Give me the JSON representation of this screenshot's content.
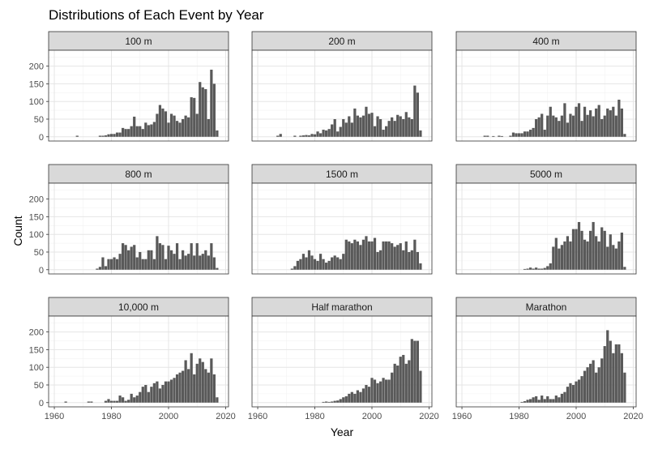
{
  "chart_data": {
    "type": "bar",
    "title": "Distributions of Each Event by Year",
    "xlabel": "Year",
    "ylabel": "Count",
    "xlim": [
      1958,
      2021
    ],
    "ylim": [
      -12,
      245
    ],
    "xticks": [
      1960,
      1980,
      2000,
      2020
    ],
    "yticks": [
      0,
      50,
      100,
      150,
      200
    ],
    "grid": true,
    "bar_color": "#595959",
    "strip_color": "#d9d9d9",
    "panels": [
      {
        "name": "100 m",
        "x": [
          1968,
          1976,
          1977,
          1978,
          1979,
          1980,
          1981,
          1982,
          1983,
          1984,
          1985,
          1986,
          1987,
          1988,
          1989,
          1990,
          1991,
          1992,
          1993,
          1994,
          1995,
          1996,
          1997,
          1998,
          1999,
          2000,
          2001,
          2002,
          2003,
          2004,
          2005,
          2006,
          2007,
          2008,
          2009,
          2010,
          2011,
          2012,
          2013,
          2014,
          2015,
          2016,
          2017
        ],
        "values": [
          3,
          3,
          3,
          4,
          7,
          8,
          8,
          12,
          12,
          25,
          22,
          22,
          30,
          57,
          30,
          30,
          22,
          40,
          33,
          35,
          42,
          65,
          90,
          80,
          72,
          40,
          65,
          60,
          45,
          40,
          50,
          60,
          55,
          112,
          110,
          65,
          155,
          140,
          135,
          50,
          190,
          150,
          18
        ]
      },
      {
        "name": "200 m",
        "x": [
          1967,
          1968,
          1973,
          1975,
          1976,
          1977,
          1978,
          1979,
          1980,
          1981,
          1982,
          1983,
          1984,
          1985,
          1986,
          1987,
          1988,
          1989,
          1990,
          1991,
          1992,
          1993,
          1994,
          1995,
          1996,
          1997,
          1998,
          1999,
          2000,
          2001,
          2002,
          2003,
          2004,
          2005,
          2006,
          2007,
          2008,
          2009,
          2010,
          2011,
          2012,
          2013,
          2014,
          2015,
          2016,
          2017
        ],
        "values": [
          3,
          8,
          3,
          3,
          4,
          5,
          4,
          8,
          7,
          15,
          10,
          20,
          18,
          22,
          35,
          50,
          15,
          28,
          50,
          40,
          58,
          40,
          80,
          60,
          55,
          60,
          85,
          65,
          68,
          30,
          58,
          50,
          20,
          30,
          45,
          55,
          45,
          62,
          58,
          50,
          70,
          55,
          50,
          145,
          125,
          18
        ]
      },
      {
        "name": "400 m",
        "x": [
          1968,
          1969,
          1971,
          1973,
          1974,
          1977,
          1978,
          1979,
          1980,
          1981,
          1982,
          1983,
          1984,
          1985,
          1986,
          1987,
          1988,
          1989,
          1990,
          1991,
          1992,
          1993,
          1994,
          1995,
          1996,
          1997,
          1998,
          1999,
          2000,
          2001,
          2002,
          2003,
          2004,
          2005,
          2006,
          2007,
          2008,
          2009,
          2010,
          2011,
          2012,
          2013,
          2014,
          2015,
          2016,
          2017
        ],
        "values": [
          3,
          3,
          2,
          3,
          2,
          3,
          12,
          10,
          10,
          10,
          15,
          15,
          20,
          25,
          50,
          55,
          65,
          20,
          60,
          85,
          60,
          55,
          45,
          60,
          95,
          40,
          65,
          60,
          85,
          95,
          45,
          85,
          62,
          75,
          58,
          80,
          90,
          50,
          60,
          80,
          75,
          85,
          60,
          105,
          80,
          8
        ]
      },
      {
        "name": "800 m",
        "x": [
          1975,
          1976,
          1977,
          1978,
          1979,
          1980,
          1981,
          1982,
          1983,
          1984,
          1985,
          1986,
          1987,
          1988,
          1989,
          1990,
          1991,
          1992,
          1993,
          1994,
          1995,
          1996,
          1997,
          1998,
          1999,
          2000,
          2001,
          2002,
          2003,
          2004,
          2005,
          2006,
          2007,
          2008,
          2009,
          2010,
          2011,
          2012,
          2013,
          2014,
          2015,
          2016,
          2017
        ],
        "values": [
          3,
          8,
          35,
          10,
          30,
          30,
          35,
          30,
          45,
          75,
          70,
          55,
          65,
          70,
          35,
          50,
          30,
          30,
          55,
          55,
          30,
          95,
          75,
          70,
          30,
          68,
          55,
          45,
          75,
          30,
          55,
          40,
          45,
          75,
          40,
          75,
          40,
          45,
          55,
          40,
          75,
          35,
          5
        ]
      },
      {
        "name": "1500 m",
        "x": [
          1972,
          1973,
          1974,
          1975,
          1976,
          1977,
          1978,
          1979,
          1980,
          1981,
          1982,
          1983,
          1984,
          1985,
          1986,
          1987,
          1988,
          1989,
          1990,
          1991,
          1992,
          1993,
          1994,
          1995,
          1996,
          1997,
          1998,
          1999,
          2000,
          2001,
          2002,
          2003,
          2004,
          2005,
          2006,
          2007,
          2008,
          2009,
          2010,
          2011,
          2012,
          2013,
          2014,
          2015,
          2016,
          2017
        ],
        "values": [
          3,
          10,
          25,
          30,
          45,
          35,
          55,
          40,
          30,
          25,
          45,
          30,
          20,
          25,
          35,
          40,
          35,
          30,
          45,
          85,
          80,
          75,
          85,
          80,
          70,
          85,
          95,
          80,
          80,
          90,
          50,
          55,
          80,
          80,
          80,
          75,
          65,
          70,
          75,
          55,
          80,
          50,
          55,
          85,
          50,
          18
        ]
      },
      {
        "name": "5000 m",
        "x": [
          1982,
          1983,
          1984,
          1985,
          1986,
          1987,
          1988,
          1989,
          1990,
          1991,
          1992,
          1993,
          1994,
          1995,
          1996,
          1997,
          1998,
          1999,
          2000,
          2001,
          2002,
          2003,
          2004,
          2005,
          2006,
          2007,
          2008,
          2009,
          2010,
          2011,
          2012,
          2013,
          2014,
          2015,
          2016,
          2017
        ],
        "values": [
          2,
          3,
          6,
          3,
          6,
          3,
          3,
          5,
          10,
          18,
          65,
          90,
          60,
          70,
          80,
          95,
          80,
          115,
          115,
          135,
          110,
          85,
          80,
          110,
          135,
          95,
          80,
          120,
          110,
          65,
          100,
          70,
          60,
          80,
          105,
          8
        ]
      },
      {
        "name": "10,000 m",
        "x": [
          1964,
          1972,
          1973,
          1978,
          1979,
          1980,
          1981,
          1982,
          1983,
          1984,
          1985,
          1986,
          1987,
          1988,
          1989,
          1990,
          1991,
          1992,
          1993,
          1994,
          1995,
          1996,
          1997,
          1998,
          1999,
          2000,
          2001,
          2002,
          2003,
          2004,
          2005,
          2006,
          2007,
          2008,
          2009,
          2010,
          2011,
          2012,
          2013,
          2014,
          2015,
          2016,
          2017
        ],
        "values": [
          3,
          3,
          3,
          5,
          10,
          5,
          5,
          5,
          20,
          15,
          5,
          8,
          25,
          15,
          20,
          30,
          45,
          50,
          30,
          45,
          55,
          60,
          40,
          50,
          60,
          60,
          65,
          70,
          80,
          85,
          90,
          120,
          95,
          140,
          80,
          110,
          125,
          115,
          95,
          85,
          125,
          80,
          15
        ]
      },
      {
        "name": "Half marathon",
        "x": [
          1983,
          1984,
          1985,
          1986,
          1987,
          1988,
          1989,
          1990,
          1991,
          1992,
          1993,
          1994,
          1995,
          1996,
          1997,
          1998,
          1999,
          2000,
          2001,
          2002,
          2003,
          2004,
          2005,
          2006,
          2007,
          2008,
          2009,
          2010,
          2011,
          2012,
          2013,
          2014,
          2015,
          2016,
          2017
        ],
        "values": [
          2,
          3,
          2,
          3,
          5,
          6,
          10,
          15,
          18,
          25,
          30,
          25,
          35,
          30,
          40,
          50,
          45,
          70,
          65,
          55,
          60,
          70,
          65,
          65,
          85,
          110,
          105,
          130,
          135,
          110,
          120,
          180,
          175,
          175,
          90
        ]
      },
      {
        "name": "Marathon",
        "x": [
          1981,
          1982,
          1983,
          1984,
          1985,
          1986,
          1987,
          1988,
          1989,
          1990,
          1991,
          1992,
          1993,
          1994,
          1995,
          1996,
          1997,
          1998,
          1999,
          2000,
          2001,
          2002,
          2003,
          2004,
          2005,
          2006,
          2007,
          2008,
          2009,
          2010,
          2011,
          2012,
          2013,
          2014,
          2015,
          2016,
          2017
        ],
        "values": [
          2,
          4,
          8,
          10,
          15,
          18,
          8,
          20,
          10,
          18,
          10,
          10,
          20,
          15,
          25,
          30,
          45,
          55,
          50,
          60,
          65,
          75,
          90,
          100,
          110,
          120,
          85,
          100,
          125,
          160,
          205,
          175,
          140,
          165,
          165,
          140,
          85
        ]
      }
    ]
  }
}
